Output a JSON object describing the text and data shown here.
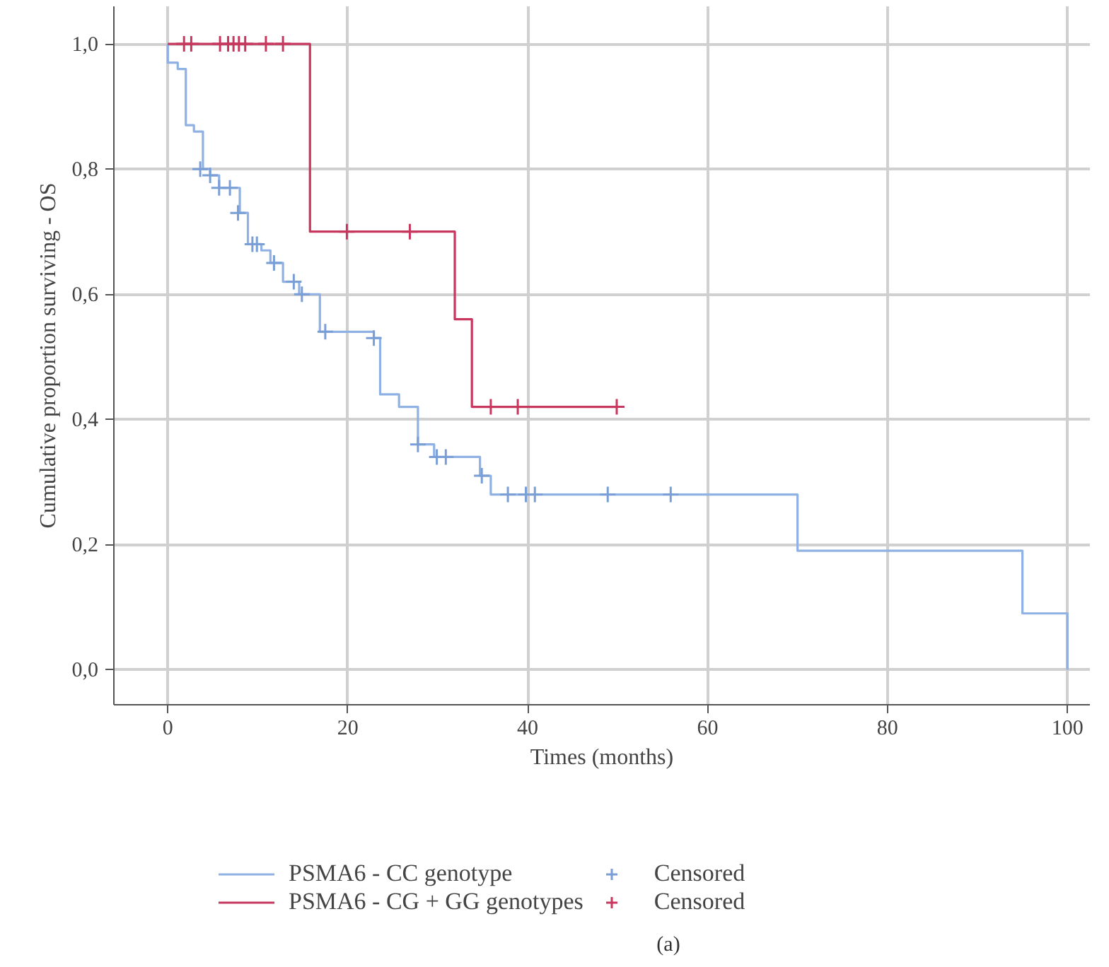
{
  "chart_data": {
    "type": "step",
    "xlabel": "Times (months)",
    "ylabel": "Cumulative proportion surviving - OS",
    "annotations": [
      "(a)"
    ],
    "xlim": [
      -6,
      102.5
    ],
    "ylim": [
      -0.056,
      1.06
    ],
    "xticks": [
      0,
      20,
      40,
      60,
      80,
      100
    ],
    "yticks": [
      {
        "value": 0,
        "label": "0,0"
      },
      {
        "value": 0.2,
        "label": "0,2"
      },
      {
        "value": 0.4,
        "label": "0,4"
      },
      {
        "value": 0.6,
        "label": "0,6"
      },
      {
        "value": 0.8,
        "label": "0,8"
      },
      {
        "value": 1.0,
        "label": "1,0"
      }
    ],
    "grid": true,
    "legend": "bottom",
    "series": [
      {
        "name": "PSMA6 - CC genotype",
        "color": "#8fb1e3",
        "x": [
          0,
          0,
          1.1,
          2,
          2.9,
          3.9,
          4.7,
          5.7,
          8,
          8.9,
          10.4,
          11.4,
          12.8,
          14.6,
          16.9,
          22.9,
          23.6,
          25.7,
          27.8,
          29.6,
          34.7,
          35.9,
          70,
          95,
          100
        ],
        "values": [
          1.0,
          0.97,
          0.96,
          0.87,
          0.86,
          0.8,
          0.79,
          0.77,
          0.73,
          0.68,
          0.67,
          0.65,
          0.62,
          0.6,
          0.54,
          0.53,
          0.44,
          0.42,
          0.36,
          0.34,
          0.31,
          0.28,
          0.19,
          0.09,
          0
        ]
      },
      {
        "name": "PSMA6 - CG + GG genotypes",
        "color": "#c8385e",
        "x": [
          0,
          15.8,
          31.9,
          33.8,
          50
        ],
        "values": [
          1.0,
          0.7,
          0.56,
          0.42,
          0.42
        ]
      },
      {
        "name": "Censored",
        "type": "scatter",
        "marker": "cross",
        "color": "#7a9fd6",
        "x": [
          3.6,
          4.7,
          5.7,
          6.9,
          7.8,
          9.4,
          9.9,
          11.8,
          14.0,
          14.9,
          17.5,
          22.9,
          27.8,
          29.9,
          30.9,
          34.9,
          37.8,
          39.8,
          40.8,
          48.9,
          55.9
        ],
        "values": [
          0.8,
          0.79,
          0.77,
          0.77,
          0.73,
          0.68,
          0.68,
          0.65,
          0.62,
          0.6,
          0.54,
          0.53,
          0.36,
          0.34,
          0.34,
          0.31,
          0.28,
          0.28,
          0.28,
          0.28,
          0.28
        ]
      },
      {
        "name": "Censored",
        "type": "scatter",
        "marker": "cross",
        "color": "#c8385e",
        "x": [
          1.8,
          2.6,
          5.8,
          6.7,
          7.3,
          7.9,
          8.6,
          10.9,
          12.8,
          19.9,
          26.9,
          35.9,
          38.9,
          49.9
        ],
        "values": [
          1.0,
          1.0,
          1.0,
          1.0,
          1.0,
          1.0,
          1.0,
          1.0,
          1.0,
          0.7,
          0.7,
          0.42,
          0.42,
          0.42
        ]
      }
    ]
  }
}
